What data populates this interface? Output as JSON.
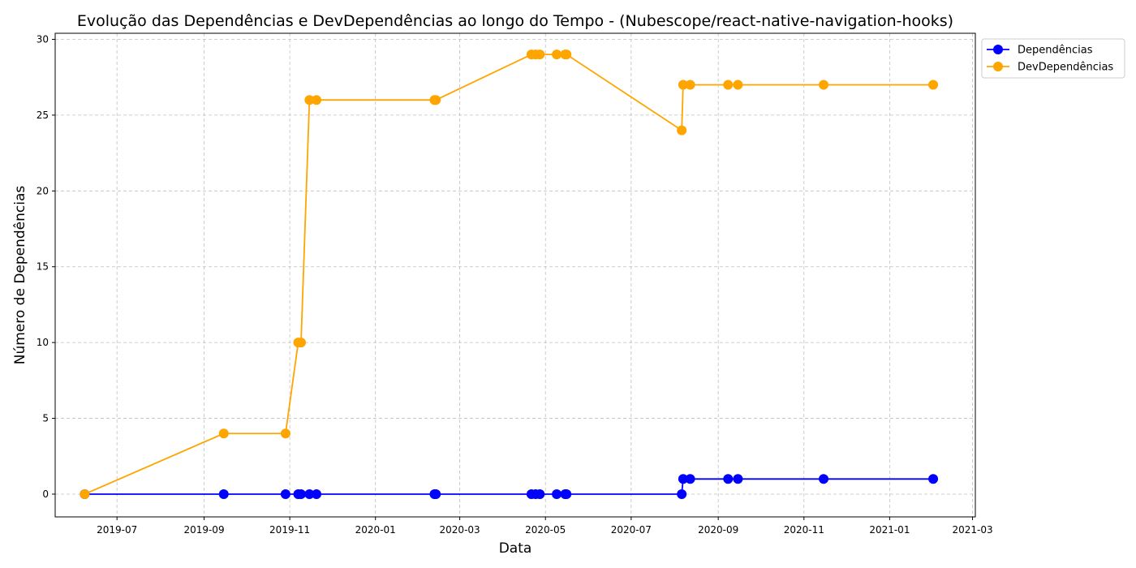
{
  "chart_data": {
    "type": "line",
    "title": "Evolução das Dependências e DevDependências ao longo do Tempo - (Nubescope/react-native-navigation-hooks)",
    "xlabel": "Data",
    "ylabel": "Número de Dependências",
    "x_axis_type": "date",
    "xlim": [
      "2019-05-18",
      "2021-03-03"
    ],
    "ylim": [
      -1.5,
      30.4
    ],
    "x_ticks": [
      "2019-07-01",
      "2019-09-01",
      "2019-11-01",
      "2020-01-01",
      "2020-03-01",
      "2020-05-01",
      "2020-07-01",
      "2020-09-01",
      "2020-11-01",
      "2021-01-01",
      "2021-03-01"
    ],
    "x_tick_labels": [
      "2019-07",
      "2019-09",
      "2019-11",
      "2020-01",
      "2020-03",
      "2020-05",
      "2020-07",
      "2020-09",
      "2020-11",
      "2021-01",
      "2021-03"
    ],
    "y_ticks": [
      0,
      5,
      10,
      15,
      20,
      25,
      30
    ],
    "y_tick_labels": [
      "0",
      "5",
      "10",
      "15",
      "20",
      "25",
      "30"
    ],
    "grid": true,
    "legend_position": "outside-top-right",
    "series": [
      {
        "name": "Dependências",
        "color": "#0000ff",
        "marker": "circle",
        "points": [
          {
            "x": "2019-06-08",
            "y": 0
          },
          {
            "x": "2019-09-15",
            "y": 0
          },
          {
            "x": "2019-10-29",
            "y": 0
          },
          {
            "x": "2019-11-07",
            "y": 0
          },
          {
            "x": "2019-11-09",
            "y": 0
          },
          {
            "x": "2019-11-15",
            "y": 0
          },
          {
            "x": "2019-11-20",
            "y": 0
          },
          {
            "x": "2020-02-12",
            "y": 0
          },
          {
            "x": "2020-02-13",
            "y": 0
          },
          {
            "x": "2020-04-21",
            "y": 0
          },
          {
            "x": "2020-04-24",
            "y": 0
          },
          {
            "x": "2020-04-27",
            "y": 0
          },
          {
            "x": "2020-05-09",
            "y": 0
          },
          {
            "x": "2020-05-15",
            "y": 0
          },
          {
            "x": "2020-05-16",
            "y": 0
          },
          {
            "x": "2020-08-06",
            "y": 0
          },
          {
            "x": "2020-08-07",
            "y": 1
          },
          {
            "x": "2020-08-12",
            "y": 1
          },
          {
            "x": "2020-09-08",
            "y": 1
          },
          {
            "x": "2020-09-15",
            "y": 1
          },
          {
            "x": "2020-11-15",
            "y": 1
          },
          {
            "x": "2021-02-01",
            "y": 1
          }
        ]
      },
      {
        "name": "DevDependências",
        "color": "#ffa500",
        "marker": "circle",
        "points": [
          {
            "x": "2019-06-08",
            "y": 0
          },
          {
            "x": "2019-09-15",
            "y": 4
          },
          {
            "x": "2019-10-29",
            "y": 4
          },
          {
            "x": "2019-11-07",
            "y": 10
          },
          {
            "x": "2019-11-09",
            "y": 10
          },
          {
            "x": "2019-11-15",
            "y": 26
          },
          {
            "x": "2019-11-20",
            "y": 26
          },
          {
            "x": "2020-02-12",
            "y": 26
          },
          {
            "x": "2020-02-13",
            "y": 26
          },
          {
            "x": "2020-04-21",
            "y": 29
          },
          {
            "x": "2020-04-24",
            "y": 29
          },
          {
            "x": "2020-04-27",
            "y": 29
          },
          {
            "x": "2020-05-09",
            "y": 29
          },
          {
            "x": "2020-05-15",
            "y": 29
          },
          {
            "x": "2020-05-16",
            "y": 29
          },
          {
            "x": "2020-08-06",
            "y": 24
          },
          {
            "x": "2020-08-07",
            "y": 27
          },
          {
            "x": "2020-08-12",
            "y": 27
          },
          {
            "x": "2020-09-08",
            "y": 27
          },
          {
            "x": "2020-09-15",
            "y": 27
          },
          {
            "x": "2020-11-15",
            "y": 27
          },
          {
            "x": "2021-02-01",
            "y": 27
          }
        ]
      }
    ]
  }
}
